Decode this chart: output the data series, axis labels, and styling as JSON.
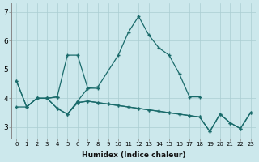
{
  "xlabel": "Humidex (Indice chaleur)",
  "bg_color": "#cce8ec",
  "grid_color": "#aacdd2",
  "line_color": "#1a6b6b",
  "xlim": [
    -0.5,
    23.5
  ],
  "ylim": [
    2.6,
    7.3
  ],
  "xticks": [
    0,
    1,
    2,
    3,
    4,
    5,
    6,
    7,
    8,
    9,
    10,
    11,
    12,
    13,
    14,
    15,
    16,
    17,
    18,
    19,
    20,
    21,
    22,
    23
  ],
  "yticks": [
    3,
    4,
    5,
    6,
    7
  ],
  "series": [
    {
      "x": [
        0,
        1,
        2,
        3,
        4,
        5,
        6,
        7,
        8,
        10,
        11,
        12,
        13,
        14,
        15,
        16,
        17,
        18
      ],
      "y": [
        4.6,
        3.7,
        4.0,
        4.0,
        4.05,
        5.5,
        5.5,
        4.35,
        4.4,
        5.5,
        6.3,
        6.85,
        6.2,
        5.75,
        5.5,
        4.85,
        4.05,
        4.05
      ]
    },
    {
      "x": [
        0,
        1,
        2,
        3,
        4
      ],
      "y": [
        4.6,
        3.7,
        4.0,
        4.0,
        4.05
      ]
    },
    {
      "x": [
        5,
        6,
        7,
        8
      ],
      "y": [
        3.45,
        3.9,
        4.35,
        4.35
      ]
    },
    {
      "x": [
        0,
        1,
        2,
        3,
        4,
        5,
        6,
        7,
        8,
        9,
        10,
        11,
        12,
        13,
        14,
        15,
        16,
        17,
        18,
        19,
        20,
        21,
        22,
        23
      ],
      "y": [
        3.7,
        3.7,
        4.0,
        4.0,
        3.65,
        3.45,
        3.85,
        3.9,
        3.85,
        3.8,
        3.75,
        3.7,
        3.65,
        3.6,
        3.55,
        3.5,
        3.45,
        3.4,
        3.35,
        2.85,
        3.45,
        3.15,
        2.95,
        3.5
      ]
    },
    {
      "x": [
        2,
        3,
        4,
        5,
        6,
        7,
        8,
        9,
        10,
        11,
        12,
        13,
        14,
        15,
        16,
        17,
        18,
        19,
        20,
        21,
        22,
        23
      ],
      "y": [
        4.0,
        4.0,
        3.65,
        3.45,
        3.85,
        3.9,
        3.85,
        3.8,
        3.75,
        3.7,
        3.65,
        3.6,
        3.55,
        3.5,
        3.45,
        3.4,
        3.35,
        2.85,
        3.45,
        3.15,
        2.95,
        3.5
      ]
    }
  ]
}
